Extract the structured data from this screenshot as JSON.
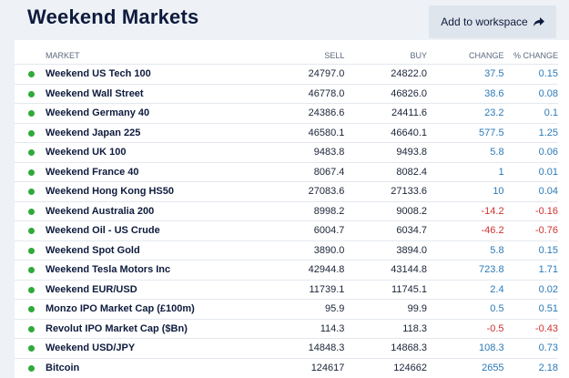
{
  "header": {
    "title": "Weekend Markets",
    "workspace_button": "Add to workspace",
    "workspace_icon": "share-arrow-icon"
  },
  "colors": {
    "positive": "#2a7ab8",
    "negative": "#d0312f",
    "status_dot": "#2faa39"
  },
  "table": {
    "columns": {
      "market": "MARKET",
      "sell": "SELL",
      "buy": "BUY",
      "change": "CHANGE",
      "pct_change": "% CHANGE"
    },
    "rows": [
      {
        "market": "Weekend US Tech 100",
        "sell": "24797.0",
        "buy": "24822.0",
        "change": "37.5",
        "pct": "0.15",
        "dir": "pos"
      },
      {
        "market": "Weekend Wall Street",
        "sell": "46778.0",
        "buy": "46826.0",
        "change": "38.6",
        "pct": "0.08",
        "dir": "pos"
      },
      {
        "market": "Weekend Germany 40",
        "sell": "24386.6",
        "buy": "24411.6",
        "change": "23.2",
        "pct": "0.1",
        "dir": "pos"
      },
      {
        "market": "Weekend Japan 225",
        "sell": "46580.1",
        "buy": "46640.1",
        "change": "577.5",
        "pct": "1.25",
        "dir": "pos"
      },
      {
        "market": "Weekend UK 100",
        "sell": "9483.8",
        "buy": "9493.8",
        "change": "5.8",
        "pct": "0.06",
        "dir": "pos"
      },
      {
        "market": "Weekend France 40",
        "sell": "8067.4",
        "buy": "8082.4",
        "change": "1",
        "pct": "0.01",
        "dir": "pos"
      },
      {
        "market": "Weekend Hong Kong HS50",
        "sell": "27083.6",
        "buy": "27133.6",
        "change": "10",
        "pct": "0.04",
        "dir": "pos"
      },
      {
        "market": "Weekend Australia 200",
        "sell": "8998.2",
        "buy": "9008.2",
        "change": "-14.2",
        "pct": "-0.16",
        "dir": "neg"
      },
      {
        "market": "Weekend Oil - US Crude",
        "sell": "6004.7",
        "buy": "6034.7",
        "change": "-46.2",
        "pct": "-0.76",
        "dir": "neg"
      },
      {
        "market": "Weekend Spot Gold",
        "sell": "3890.0",
        "buy": "3894.0",
        "change": "5.8",
        "pct": "0.15",
        "dir": "pos"
      },
      {
        "market": "Weekend Tesla Motors Inc",
        "sell": "42944.8",
        "buy": "43144.8",
        "change": "723.8",
        "pct": "1.71",
        "dir": "pos"
      },
      {
        "market": "Weekend EUR/USD",
        "sell": "11739.1",
        "buy": "11745.1",
        "change": "2.4",
        "pct": "0.02",
        "dir": "pos"
      },
      {
        "market": "Monzo IPO Market Cap (£100m)",
        "sell": "95.9",
        "buy": "99.9",
        "change": "0.5",
        "pct": "0.51",
        "dir": "pos"
      },
      {
        "market": "Revolut IPO Market Cap ($Bn)",
        "sell": "114.3",
        "buy": "118.3",
        "change": "-0.5",
        "pct": "-0.43",
        "dir": "neg"
      },
      {
        "market": "Weekend USD/JPY",
        "sell": "14848.3",
        "buy": "14868.3",
        "change": "108.3",
        "pct": "0.73",
        "dir": "pos"
      },
      {
        "market": "Bitcoin",
        "sell": "124617",
        "buy": "124662",
        "change": "2655",
        "pct": "2.18",
        "dir": "pos"
      }
    ]
  }
}
